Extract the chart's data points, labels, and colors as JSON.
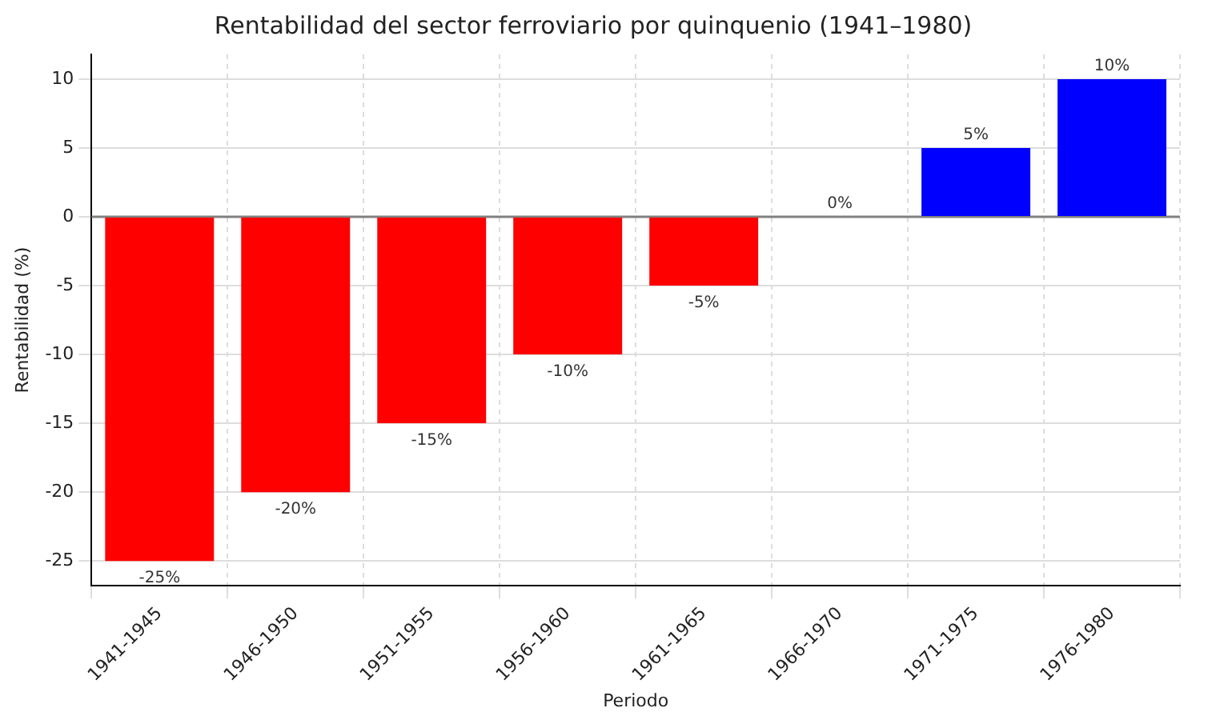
{
  "chart_data": {
    "type": "bar",
    "title": "Rentabilidad del sector ferroviario por quinquenio (1941–1980)",
    "xlabel": "Periodo",
    "ylabel": "Rentabilidad (%)",
    "categories": [
      "1941-1945",
      "1946-1950",
      "1951-1955",
      "1956-1960",
      "1961-1965",
      "1966-1970",
      "1971-1975",
      "1976-1980"
    ],
    "values": [
      -25,
      -20,
      -15,
      -10,
      -5,
      0,
      5,
      10
    ],
    "colors": [
      "#ff0000",
      "#ff0000",
      "#ff0000",
      "#ff0000",
      "#ff0000",
      "#0000ff",
      "#0000ff",
      "#0000ff"
    ],
    "value_labels": [
      "-25%",
      "-20%",
      "-15%",
      "-10%",
      "-5%",
      "0%",
      "5%",
      "10%"
    ],
    "ylim": [
      -26.8,
      11.8
    ],
    "yticks": [
      -25,
      -20,
      -15,
      -10,
      -5,
      0,
      5,
      10
    ],
    "ref_lines": [
      {
        "axis": "y",
        "value": 0,
        "color": "#808080"
      }
    ],
    "grid": true,
    "legend": false
  }
}
